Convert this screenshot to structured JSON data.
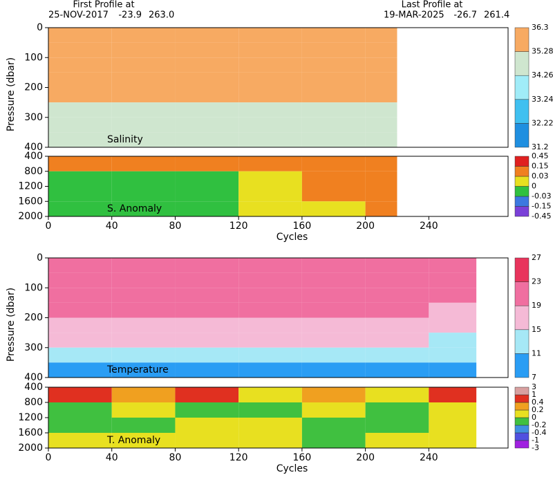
{
  "header": {
    "first_title": "First Profile at",
    "first_date": "25-NOV-2017",
    "first_lat": "-23.9",
    "first_lon": "263.0",
    "last_title": "Last Profile at",
    "last_date": "19-MAR-2025",
    "last_lat": "-26.7",
    "last_lon": "261.4"
  },
  "chart_data": [
    {
      "type": "heatmap",
      "label": "Salinity",
      "ylabel": "Pressure (dbar)",
      "xlim": [
        0,
        290
      ],
      "ylim": [
        0,
        400
      ],
      "yticks": [
        0,
        100,
        200,
        300,
        400
      ],
      "y_inverted": true,
      "x": [
        0,
        40,
        80,
        120,
        160,
        200,
        220
      ],
      "y": [
        0,
        50,
        100,
        150,
        200,
        250,
        300,
        350,
        400
      ],
      "z": [
        [
          35.9,
          35.9,
          35.8,
          35.9,
          35.8,
          35.9
        ],
        [
          35.8,
          35.7,
          35.7,
          35.8,
          35.7,
          35.8
        ],
        [
          35.7,
          35.6,
          35.6,
          35.7,
          35.6,
          35.6
        ],
        [
          35.5,
          35.5,
          35.4,
          35.5,
          35.4,
          35.5
        ],
        [
          35.4,
          35.3,
          35.3,
          35.4,
          35.3,
          35.3
        ],
        [
          35.0,
          35.0,
          35.0,
          35.1,
          35.0,
          35.0
        ],
        [
          34.9,
          34.9,
          34.9,
          34.9,
          34.9,
          34.9
        ],
        [
          34.8,
          34.8,
          34.8,
          34.8,
          34.8,
          34.8
        ]
      ],
      "colorbar": {
        "levels": [
          31.2,
          32.22,
          33.24,
          34.26,
          35.28,
          36.3
        ],
        "colors": [
          "#1f8fe0",
          "#40c0f0",
          "#a0ecf8",
          "#cfe6cf",
          "#f7aa62"
        ]
      }
    },
    {
      "type": "heatmap",
      "label": "S. Anomaly",
      "xlabel": "Cycles",
      "xlim": [
        0,
        290
      ],
      "xticks": [
        0,
        40,
        80,
        120,
        160,
        200,
        240
      ],
      "ylim": [
        400,
        2000
      ],
      "yticks": [
        400,
        800,
        1200,
        1600,
        2000
      ],
      "y_inverted": true,
      "x": [
        0,
        40,
        80,
        120,
        160,
        200,
        220
      ],
      "y": [
        400,
        800,
        1200,
        1600,
        2000
      ],
      "z": [
        [
          0.1,
          0.05,
          0.1,
          0.05,
          0.1,
          0.05
        ],
        [
          -0.01,
          -0.01,
          -0.01,
          0.02,
          0.04,
          0.04
        ],
        [
          -0.01,
          -0.01,
          -0.01,
          0.02,
          0.04,
          0.04
        ],
        [
          -0.01,
          -0.01,
          -0.01,
          0.02,
          0.02,
          0.04
        ]
      ],
      "colorbar": {
        "levels": [
          -0.45,
          -0.15,
          -0.03,
          0,
          0.03,
          0.15,
          0.45
        ],
        "colors": [
          "#7a40d8",
          "#3c78e0",
          "#30c040",
          "#e8e020",
          "#f08020",
          "#e02020"
        ]
      }
    },
    {
      "type": "heatmap",
      "label": "Temperature",
      "ylabel": "Pressure (dbar)",
      "xlim": [
        0,
        290
      ],
      "ylim": [
        0,
        400
      ],
      "yticks": [
        0,
        100,
        200,
        300,
        400
      ],
      "y_inverted": true,
      "x": [
        0,
        40,
        80,
        120,
        160,
        200,
        240,
        270
      ],
      "y": [
        0,
        50,
        100,
        150,
        200,
        250,
        300,
        350,
        400
      ],
      "z": [
        [
          21,
          21,
          21,
          21,
          21,
          21,
          20
        ],
        [
          20.5,
          20.5,
          20.5,
          20.5,
          20.5,
          20.5,
          19.5
        ],
        [
          20,
          20,
          20,
          20,
          20,
          20,
          19
        ],
        [
          19.5,
          19.5,
          19.5,
          19.5,
          19.5,
          19.5,
          18
        ],
        [
          18,
          18,
          18,
          18,
          18,
          18,
          17
        ],
        [
          15.5,
          15.5,
          15.5,
          15.5,
          15.5,
          15.5,
          14
        ],
        [
          13,
          13,
          13,
          13,
          13,
          13,
          12.5
        ],
        [
          10.5,
          10.5,
          10.5,
          10.5,
          10.5,
          10.5,
          10.5
        ]
      ],
      "colorbar": {
        "levels": [
          7,
          11,
          15,
          19,
          23,
          27
        ],
        "colors": [
          "#2a9df4",
          "#a6e8f6",
          "#f5bad6",
          "#f06fa0",
          "#e8345c"
        ]
      }
    },
    {
      "type": "heatmap",
      "label": "T. Anomaly",
      "xlabel": "Cycles",
      "xlim": [
        0,
        290
      ],
      "xticks": [
        0,
        40,
        80,
        120,
        160,
        200,
        240
      ],
      "ylim": [
        400,
        2000
      ],
      "yticks": [
        400,
        800,
        1200,
        1600,
        2000
      ],
      "y_inverted": true,
      "x": [
        0,
        40,
        80,
        120,
        160,
        200,
        240,
        270
      ],
      "y": [
        400,
        800,
        1200,
        1600,
        2000
      ],
      "z": [
        [
          0.5,
          0.3,
          0.5,
          0.1,
          0.3,
          0.1,
          0.5
        ],
        [
          -0.1,
          0.1,
          -0.1,
          -0.1,
          0.1,
          -0.1,
          0.1
        ],
        [
          -0.1,
          -0.1,
          0.1,
          0.1,
          -0.1,
          -0.1,
          0.1
        ],
        [
          0.1,
          0.1,
          0.1,
          0.1,
          -0.1,
          0.1,
          0.1
        ]
      ],
      "colorbar": {
        "levels": [
          -3,
          -1,
          -0.4,
          -0.2,
          0,
          0.2,
          0.4,
          1,
          3
        ],
        "colors": [
          "#a020e0",
          "#5050e0",
          "#4090e0",
          "#40c040",
          "#e8e020",
          "#f0a020",
          "#e03020",
          "#d8a0a0"
        ]
      }
    }
  ]
}
